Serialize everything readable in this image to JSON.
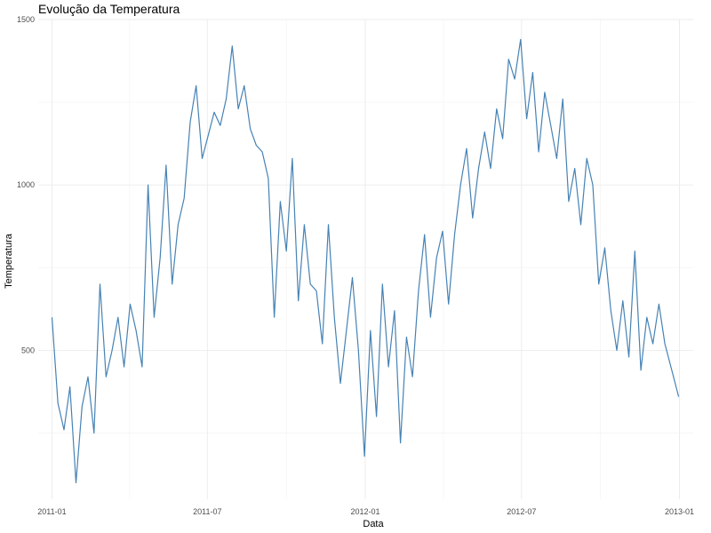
{
  "chart_data": {
    "type": "line",
    "title": "Evolução da Temperatura",
    "xlabel": "Data",
    "ylabel": "Temperatura",
    "x_ticks": [
      "2011-01",
      "2011-07",
      "2012-01",
      "2012-07",
      "2013-01"
    ],
    "x_tick_dates": [
      "2011-01-01",
      "2011-07-01",
      "2012-01-01",
      "2012-07-01",
      "2013-01-01"
    ],
    "y_ticks": [
      500,
      1000,
      1500
    ],
    "xlim": [
      "2010-12-16",
      "2013-01-17"
    ],
    "ylim": [
      50,
      1500
    ],
    "grid": true,
    "series": [
      {
        "color": "#4682b4",
        "x": [
          "2011-01-01",
          "2011-01-08",
          "2011-01-15",
          "2011-01-22",
          "2011-01-29",
          "2011-02-05",
          "2011-02-12",
          "2011-02-19",
          "2011-02-26",
          "2011-03-05",
          "2011-03-12",
          "2011-03-19",
          "2011-03-26",
          "2011-04-02",
          "2011-04-09",
          "2011-04-16",
          "2011-04-23",
          "2011-04-30",
          "2011-05-07",
          "2011-05-14",
          "2011-05-21",
          "2011-05-28",
          "2011-06-04",
          "2011-06-11",
          "2011-06-18",
          "2011-06-25",
          "2011-07-02",
          "2011-07-09",
          "2011-07-16",
          "2011-07-23",
          "2011-07-30",
          "2011-08-06",
          "2011-08-13",
          "2011-08-20",
          "2011-08-27",
          "2011-09-03",
          "2011-09-10",
          "2011-09-17",
          "2011-09-24",
          "2011-10-01",
          "2011-10-08",
          "2011-10-15",
          "2011-10-22",
          "2011-10-29",
          "2011-11-05",
          "2011-11-12",
          "2011-11-19",
          "2011-11-26",
          "2011-12-03",
          "2011-12-10",
          "2011-12-17",
          "2011-12-24",
          "2011-12-31",
          "2012-01-07",
          "2012-01-14",
          "2012-01-21",
          "2012-01-28",
          "2012-02-04",
          "2012-02-11",
          "2012-02-18",
          "2012-02-25",
          "2012-03-03",
          "2012-03-10",
          "2012-03-17",
          "2012-03-24",
          "2012-03-31",
          "2012-04-07",
          "2012-04-14",
          "2012-04-21",
          "2012-04-28",
          "2012-05-05",
          "2012-05-12",
          "2012-05-19",
          "2012-05-26",
          "2012-06-02",
          "2012-06-09",
          "2012-06-16",
          "2012-06-23",
          "2012-06-30",
          "2012-07-07",
          "2012-07-14",
          "2012-07-21",
          "2012-07-28",
          "2012-08-04",
          "2012-08-11",
          "2012-08-18",
          "2012-08-25",
          "2012-09-01",
          "2012-09-08",
          "2012-09-15",
          "2012-09-22",
          "2012-09-29",
          "2012-10-06",
          "2012-10-13",
          "2012-10-20",
          "2012-10-27",
          "2012-11-03",
          "2012-11-10",
          "2012-11-17",
          "2012-11-24",
          "2012-12-01",
          "2012-12-08",
          "2012-12-15",
          "2012-12-22",
          "2012-12-31"
        ],
        "values": [
          600,
          340,
          260,
          390,
          100,
          330,
          420,
          250,
          700,
          420,
          500,
          600,
          450,
          640,
          560,
          450,
          1000,
          600,
          780,
          1060,
          700,
          880,
          960,
          1190,
          1300,
          1080,
          1150,
          1220,
          1180,
          1260,
          1420,
          1230,
          1300,
          1170,
          1120,
          1100,
          1020,
          600,
          950,
          800,
          1080,
          650,
          880,
          700,
          680,
          520,
          880,
          600,
          400,
          560,
          720,
          500,
          180,
          560,
          300,
          700,
          450,
          620,
          220,
          540,
          420,
          680,
          850,
          600,
          780,
          860,
          640,
          850,
          1000,
          1110,
          900,
          1050,
          1160,
          1050,
          1230,
          1140,
          1380,
          1320,
          1440,
          1200,
          1340,
          1100,
          1280,
          1180,
          1080,
          1260,
          950,
          1050,
          880,
          1080,
          1000,
          700,
          810,
          620,
          500,
          650,
          480,
          800,
          440,
          600,
          520,
          640,
          520,
          450,
          360
        ]
      }
    ]
  }
}
